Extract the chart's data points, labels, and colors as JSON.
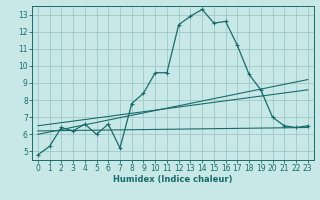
{
  "xlabel": "Humidex (Indice chaleur)",
  "background_color": "#c8e8e8",
  "grid_color": "#a0c8c8",
  "line_color": "#1a6b6b",
  "xlim": [
    -0.5,
    23.5
  ],
  "ylim": [
    4.5,
    13.5
  ],
  "xticks": [
    0,
    1,
    2,
    3,
    4,
    5,
    6,
    7,
    8,
    9,
    10,
    11,
    12,
    13,
    14,
    15,
    16,
    17,
    18,
    19,
    20,
    21,
    22,
    23
  ],
  "yticks": [
    5,
    6,
    7,
    8,
    9,
    10,
    11,
    12,
    13
  ],
  "line1_x": [
    0,
    1,
    2,
    3,
    4,
    5,
    6,
    7,
    8,
    9,
    10,
    11,
    12,
    13,
    14,
    15,
    16,
    17,
    18,
    19,
    20,
    21,
    22,
    23
  ],
  "line1_y": [
    4.8,
    5.3,
    6.4,
    6.2,
    6.6,
    6.0,
    6.6,
    5.2,
    7.8,
    8.4,
    9.6,
    9.6,
    12.4,
    12.9,
    13.3,
    12.5,
    12.6,
    11.2,
    9.5,
    8.6,
    7.0,
    6.5,
    6.4,
    6.5
  ],
  "line2_x": [
    0,
    23
  ],
  "line2_y": [
    6.2,
    6.4
  ],
  "line3_x": [
    0,
    23
  ],
  "line3_y": [
    6.0,
    9.2
  ],
  "line4_x": [
    0,
    23
  ],
  "line4_y": [
    6.5,
    8.6
  ]
}
